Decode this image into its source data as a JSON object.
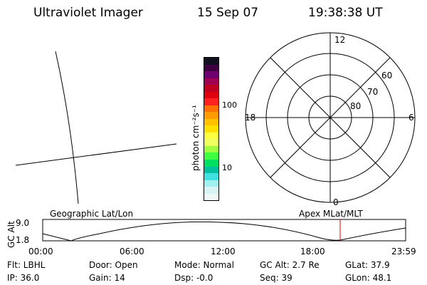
{
  "header": {
    "instrument": "Ultraviolet Imager",
    "date": "15 Sep 07",
    "time": "19:38:38 UT"
  },
  "map_labels": {
    "left": "Geographic Lat/Lon",
    "right": "Apex MLat/MLT"
  },
  "colorbar": {
    "label": "photon cm⁻²s⁻¹",
    "ticks": [
      "100",
      "10"
    ],
    "colors": [
      "#101020",
      "#400040",
      "#700070",
      "#a00050",
      "#c00020",
      "#e00010",
      "#ff2020",
      "#ff7000",
      "#ff9a00",
      "#ffc000",
      "#ffe000",
      "#ffff40",
      "#f0ff60",
      "#a0ff40",
      "#40ff40",
      "#00e060",
      "#00c0a0",
      "#40e0e0",
      "#a0f0f0",
      "#d8f4f4",
      "#f0f8f8"
    ]
  },
  "polar": {
    "mlt_labels": {
      "top": "12",
      "left": "18",
      "right": "6",
      "bottom": "0"
    },
    "lat_labels": [
      "60",
      "70",
      "80"
    ]
  },
  "altitude_strip": {
    "ylabel": "GC Alt",
    "y_ticks": [
      "9.0",
      "1.8"
    ],
    "x_ticks": [
      "00:00",
      "06:00",
      "12:00",
      "18:00",
      "23:59"
    ],
    "current_marker_time": "19:38:38"
  },
  "info": {
    "flt": "Flt: LBHL",
    "door": "Door: Open",
    "mode": "Mode: Normal",
    "gc_alt": "GC Alt: 2.7 Re",
    "glat": "GLat:  37.9",
    "ip": "IP: 36.0",
    "gain": "Gain: 14",
    "dsp": "Dsp:   -0.0",
    "seq": "Seq: 39",
    "glon": "GLon:  48.1"
  }
}
